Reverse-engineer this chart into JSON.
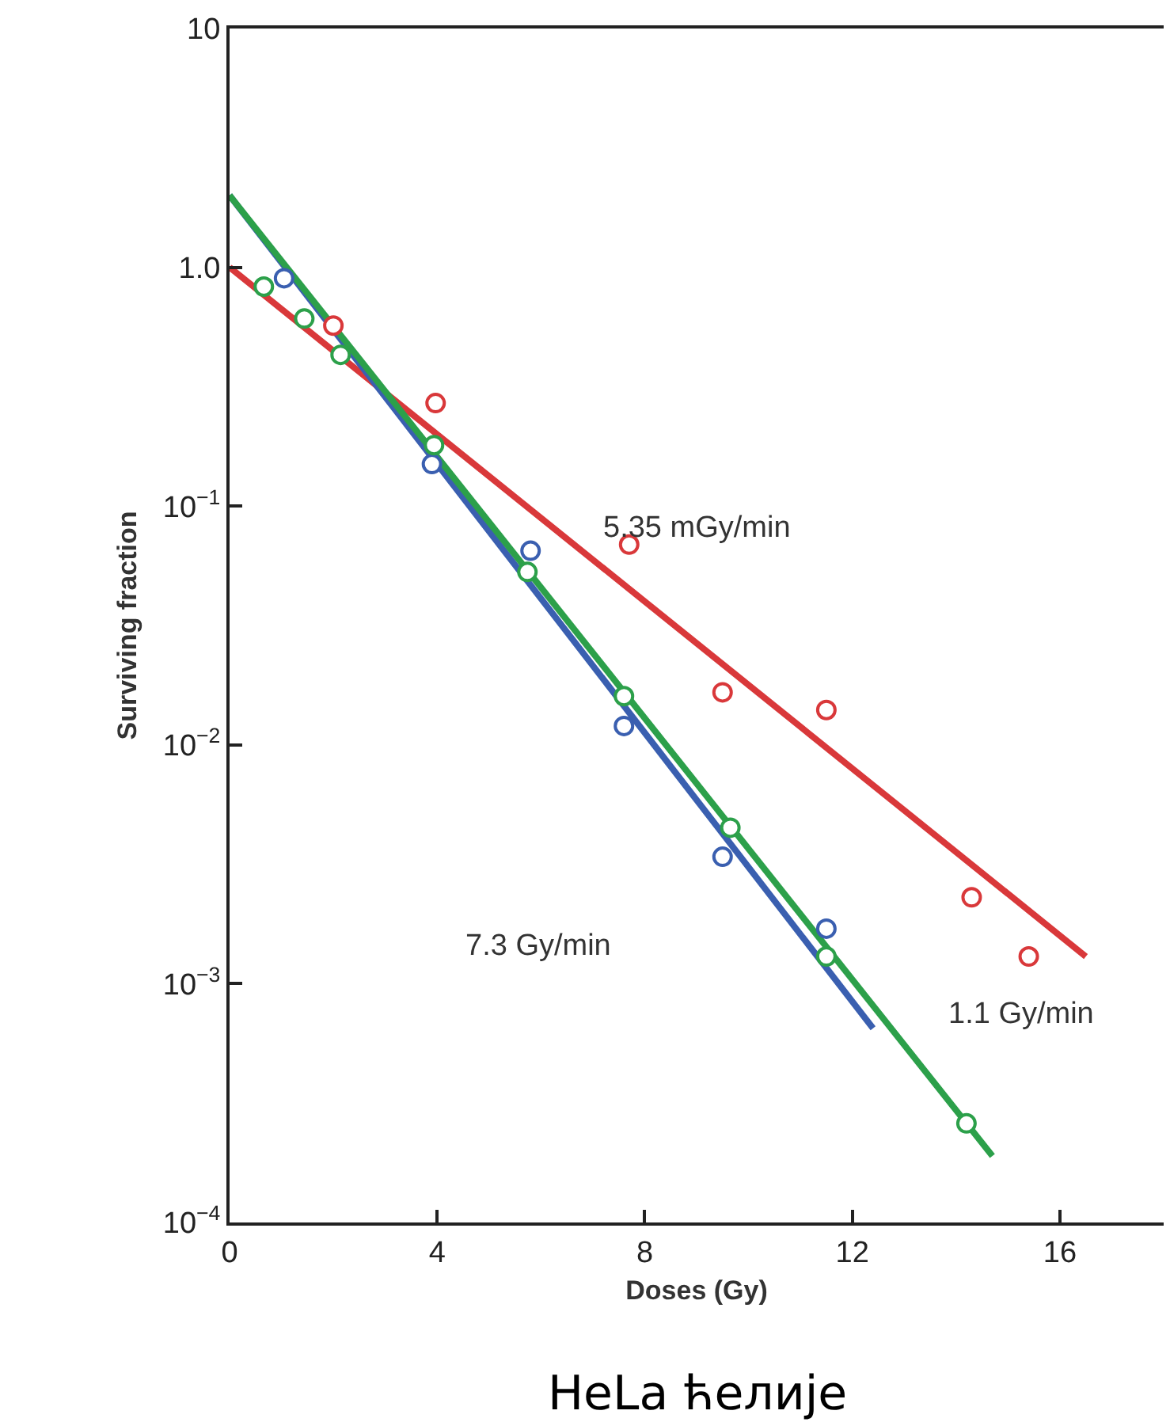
{
  "chart_data": {
    "type": "scatter",
    "xlabel": "Doses (Gy)",
    "ylabel": "Surviving fraction",
    "xlim": [
      0,
      18
    ],
    "xticks": [
      0,
      4,
      8,
      12,
      16
    ],
    "ylim": [
      0.0001,
      10
    ],
    "log": "y",
    "yticks": [
      {
        "value": 0.0001,
        "label": "10$^{−4}$"
      },
      {
        "value": 0.001,
        "label": "10$^{−3}$"
      },
      {
        "value": 0.01,
        "label": "10$^{−2}$"
      },
      {
        "value": 0.1,
        "label": "10$^{−1}$"
      },
      {
        "value": 1,
        "label": "1.0"
      },
      10
    ],
    "series": [
      {
        "marker": "circle",
        "color": "#d9383a",
        "x": [
          2.0,
          3.97,
          7.7,
          9.5,
          11.5,
          14.3,
          15.4
        ],
        "values": [
          0.57,
          0.27,
          0.069,
          0.0166,
          0.014,
          0.0023,
          0.0013
        ]
      },
      {
        "marker": "circle",
        "color": "#3a5fb0",
        "x": [
          1.05,
          3.9,
          5.8,
          7.6,
          9.5,
          11.5
        ],
        "values": [
          0.9,
          0.15,
          0.065,
          0.012,
          0.0034,
          0.0017
        ]
      },
      {
        "marker": "circle",
        "color": "#2ca04a",
        "x": [
          0.66,
          1.44,
          2.14,
          3.94,
          5.74,
          7.6,
          9.65,
          11.5,
          14.2
        ],
        "values": [
          0.83,
          0.61,
          0.43,
          0.18,
          0.053,
          0.016,
          0.0045,
          0.0013,
          0.00026
        ]
      },
      {
        "type": "line",
        "color": "#d9383a",
        "x": [
          0,
          16.5
        ],
        "values": [
          1.0,
          0.0013
        ]
      },
      {
        "type": "line",
        "color": "#3a5fb0",
        "x": [
          0,
          12.4
        ],
        "values": [
          2.0,
          0.00065
        ]
      },
      {
        "type": "line",
        "color": "#2ca04a",
        "x": [
          0,
          14.7
        ],
        "values": [
          2.0,
          0.00019
        ]
      }
    ],
    "annotations": [
      "5.35 mGy/min",
      "7.3 Gy/min",
      "1.1 Gy/min",
      "HeLa ћелије"
    ]
  }
}
